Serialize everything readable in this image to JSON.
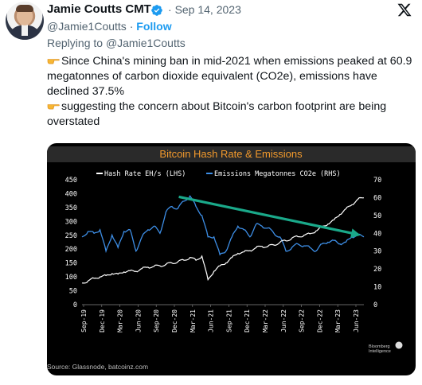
{
  "author": {
    "name": "Jamie Coutts CMT",
    "date": "Sep 14, 2023",
    "handle": "@Jamie1Coutts",
    "separator": "·",
    "follow_label": "Follow",
    "reply_prefix": "Replying to ",
    "reply_to": "@Jamie1Coutts"
  },
  "tweet": {
    "line1": "Since China's mining ban in mid-2021 when emissions peaked at 60.9 megatonnes of carbon dioxide equivalent (CO2e), emissions have declined 37.5%",
    "line2": "suggesting the concern about Bitcoin's carbon footprint are being overstated"
  },
  "colors": {
    "hashrate": "#ffffff",
    "emissions": "#3d8ee6",
    "arrow": "#1aa98a",
    "title": "#f39a2c",
    "verified": "#1d9bf0"
  },
  "chart_data": {
    "type": "line",
    "title": "Bitcoin Hash Rate & Emissions",
    "source": "Source: Glassnode, batcoinz.com",
    "watermark_line1": "Bloomberg",
    "watermark_line2": "Intelligence",
    "x_ticks": [
      "Sep-19",
      "Dec-19",
      "Mar-20",
      "Jun-20",
      "Sep-20",
      "Dec-20",
      "Mar-21",
      "Jun-21",
      "Sep-21",
      "Dec-21",
      "Mar-22",
      "Jun-22",
      "Sep-22",
      "Dec-22",
      "Mar-23",
      "Jun-23"
    ],
    "left_axis": {
      "ticks": [
        0,
        50,
        100,
        150,
        200,
        250,
        300,
        350,
        400,
        450
      ],
      "ylim": [
        0,
        450
      ]
    },
    "right_axis": {
      "ticks": [
        0,
        10,
        20,
        30,
        40,
        50,
        60,
        70
      ],
      "ylim": [
        0,
        70
      ]
    },
    "series": [
      {
        "name": "Hash Rate EH/s (LHS)",
        "axis": "left",
        "x": [
          0,
          1,
          2,
          3,
          4,
          5,
          6,
          7,
          8,
          9,
          10,
          11,
          12,
          13,
          14,
          15,
          16,
          17,
          18,
          19,
          20,
          21,
          22,
          23,
          24,
          25,
          26,
          27,
          28,
          29,
          30,
          31,
          32,
          33,
          34,
          35,
          36,
          37,
          38,
          39,
          40,
          41,
          42,
          43,
          44,
          45,
          46,
          47
        ],
        "y": [
          78,
          85,
          95,
          100,
          105,
          112,
          110,
          118,
          122,
          120,
          130,
          135,
          138,
          140,
          145,
          150,
          155,
          160,
          170,
          160,
          175,
          90,
          120,
          140,
          150,
          170,
          185,
          190,
          195,
          205,
          210,
          210,
          215,
          225,
          230,
          240,
          245,
          250,
          255,
          265,
          280,
          290,
          305,
          325,
          345,
          360,
          380,
          385
        ]
      },
      {
        "name": "Emissions Megatonnes CO2e (RHS)",
        "axis": "right",
        "x": [
          0,
          1,
          2,
          3,
          4,
          5,
          6,
          7,
          8,
          9,
          10,
          11,
          12,
          13,
          14,
          15,
          16,
          17,
          18,
          19,
          20,
          21,
          22,
          23,
          24,
          25,
          26,
          27,
          28,
          29,
          30,
          31,
          32,
          33,
          34,
          35,
          36,
          37,
          38,
          39,
          40,
          41,
          42,
          43,
          44,
          45,
          46,
          47
        ],
        "y": [
          38,
          41,
          40,
          42,
          30,
          39,
          32,
          41,
          42,
          30,
          38,
          42,
          44,
          40,
          52,
          55,
          54,
          58,
          60.9,
          55,
          50,
          38,
          38,
          28,
          30,
          38,
          44,
          42,
          38,
          45,
          44,
          43,
          40,
          38,
          30,
          32,
          34,
          33,
          32,
          30,
          34,
          35,
          36,
          34,
          35,
          38,
          39,
          38
        ]
      }
    ],
    "annotation_arrow": {
      "from": [
        18,
        60.9
      ],
      "to": [
        47,
        38
      ]
    }
  }
}
